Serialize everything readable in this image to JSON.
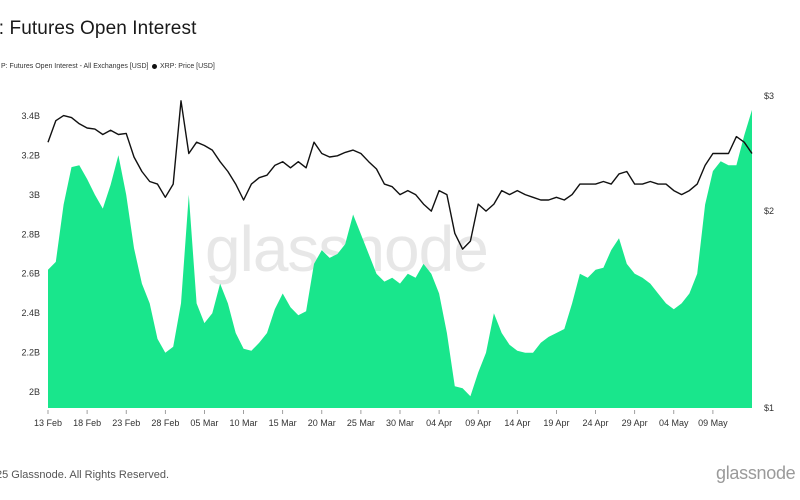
{
  "brand": "glassnode",
  "copyright": "25 Glassnode. All Rights Reserved.",
  "colors": {
    "open_interest": "#19e68c",
    "price": "#111111",
    "grid": "#eeeeee"
  },
  "chart_data": {
    "type": "area",
    "title": "P: Futures Open Interest",
    "legend": {
      "placement": "top-left",
      "entries": [
        "P: Futures Open Interest - All Exchanges [USD]",
        "XRP: Price [USD]"
      ]
    },
    "x_ticks": [
      "13 Feb",
      "18 Feb",
      "23 Feb",
      "28 Feb",
      "05 Mar",
      "10 Mar",
      "15 Mar",
      "20 Mar",
      "25 Mar",
      "30 Mar",
      "04 Apr",
      "09 Apr",
      "14 Apr",
      "19 Apr",
      "24 Apr",
      "29 Apr",
      "04 May",
      "09 May"
    ],
    "x_start": "2025-02-13",
    "x_end": "2025-05-14",
    "left_axis": {
      "ticks": [
        "3.4B",
        "3.2B",
        "3B",
        "2.8B",
        "2.6B",
        "2.4B",
        "2.2B",
        "2B"
      ],
      "ylim": [
        1.92,
        3.48
      ],
      "unit": "B USD"
    },
    "right_axis": {
      "ticks": [
        "$3",
        "$2",
        "$1"
      ],
      "scale": "log"
    },
    "grid": false,
    "series": [
      {
        "name": "P: Futures Open Interest - All Exchanges [USD]",
        "axis": "left",
        "color": "#19e68c",
        "points": [
          [
            "2025-02-13",
            2.62
          ],
          [
            "2025-02-14",
            2.66
          ],
          [
            "2025-02-15",
            2.95
          ],
          [
            "2025-02-16",
            3.14
          ],
          [
            "2025-02-17",
            3.15
          ],
          [
            "2025-02-18",
            3.08
          ],
          [
            "2025-02-19",
            3.0
          ],
          [
            "2025-02-20",
            2.93
          ],
          [
            "2025-02-21",
            3.05
          ],
          [
            "2025-02-22",
            3.2
          ],
          [
            "2025-02-23",
            3.0
          ],
          [
            "2025-02-24",
            2.73
          ],
          [
            "2025-02-25",
            2.55
          ],
          [
            "2025-02-26",
            2.45
          ],
          [
            "2025-02-27",
            2.27
          ],
          [
            "2025-02-28",
            2.2
          ],
          [
            "2025-03-01",
            2.23
          ],
          [
            "2025-03-02",
            2.45
          ],
          [
            "2025-03-03",
            3.0
          ],
          [
            "2025-03-04",
            2.45
          ],
          [
            "2025-03-05",
            2.35
          ],
          [
            "2025-03-06",
            2.4
          ],
          [
            "2025-03-07",
            2.55
          ],
          [
            "2025-03-08",
            2.45
          ],
          [
            "2025-03-09",
            2.3
          ],
          [
            "2025-03-10",
            2.22
          ],
          [
            "2025-03-11",
            2.21
          ],
          [
            "2025-03-12",
            2.25
          ],
          [
            "2025-03-13",
            2.3
          ],
          [
            "2025-03-14",
            2.42
          ],
          [
            "2025-03-15",
            2.5
          ],
          [
            "2025-03-16",
            2.43
          ],
          [
            "2025-03-17",
            2.39
          ],
          [
            "2025-03-18",
            2.41
          ],
          [
            "2025-03-19",
            2.65
          ],
          [
            "2025-03-20",
            2.72
          ],
          [
            "2025-03-21",
            2.68
          ],
          [
            "2025-03-22",
            2.7
          ],
          [
            "2025-03-23",
            2.75
          ],
          [
            "2025-03-24",
            2.9
          ],
          [
            "2025-03-25",
            2.8
          ],
          [
            "2025-03-26",
            2.7
          ],
          [
            "2025-03-27",
            2.6
          ],
          [
            "2025-03-28",
            2.56
          ],
          [
            "2025-03-29",
            2.58
          ],
          [
            "2025-03-30",
            2.55
          ],
          [
            "2025-03-31",
            2.6
          ],
          [
            "2025-04-01",
            2.58
          ],
          [
            "2025-04-02",
            2.65
          ],
          [
            "2025-04-03",
            2.6
          ],
          [
            "2025-04-04",
            2.5
          ],
          [
            "2025-04-05",
            2.3
          ],
          [
            "2025-04-06",
            2.03
          ],
          [
            "2025-04-07",
            2.02
          ],
          [
            "2025-04-08",
            1.98
          ],
          [
            "2025-04-09",
            2.1
          ],
          [
            "2025-04-10",
            2.2
          ],
          [
            "2025-04-11",
            2.4
          ],
          [
            "2025-04-12",
            2.3
          ],
          [
            "2025-04-13",
            2.24
          ],
          [
            "2025-04-14",
            2.21
          ],
          [
            "2025-04-15",
            2.2
          ],
          [
            "2025-04-16",
            2.2
          ],
          [
            "2025-04-17",
            2.25
          ],
          [
            "2025-04-18",
            2.28
          ],
          [
            "2025-04-19",
            2.3
          ],
          [
            "2025-04-20",
            2.32
          ],
          [
            "2025-04-21",
            2.45
          ],
          [
            "2025-04-22",
            2.6
          ],
          [
            "2025-04-23",
            2.58
          ],
          [
            "2025-04-24",
            2.62
          ],
          [
            "2025-04-25",
            2.63
          ],
          [
            "2025-04-26",
            2.72
          ],
          [
            "2025-04-27",
            2.78
          ],
          [
            "2025-04-28",
            2.65
          ],
          [
            "2025-04-29",
            2.6
          ],
          [
            "2025-04-30",
            2.58
          ],
          [
            "2025-05-01",
            2.55
          ],
          [
            "2025-05-02",
            2.5
          ],
          [
            "2025-05-03",
            2.45
          ],
          [
            "2025-05-04",
            2.42
          ],
          [
            "2025-05-05",
            2.45
          ],
          [
            "2025-05-06",
            2.5
          ],
          [
            "2025-05-07",
            2.6
          ],
          [
            "2025-05-08",
            2.95
          ],
          [
            "2025-05-09",
            3.12
          ],
          [
            "2025-05-10",
            3.17
          ],
          [
            "2025-05-11",
            3.15
          ],
          [
            "2025-05-12",
            3.15
          ],
          [
            "2025-05-13",
            3.3
          ],
          [
            "2025-05-14",
            3.43
          ]
        ]
      },
      {
        "name": "XRP: Price [USD]",
        "axis": "right",
        "color": "#111111",
        "points": [
          [
            "2025-02-13",
            2.55
          ],
          [
            "2025-02-14",
            2.75
          ],
          [
            "2025-02-15",
            2.8
          ],
          [
            "2025-02-16",
            2.78
          ],
          [
            "2025-02-17",
            2.72
          ],
          [
            "2025-02-18",
            2.68
          ],
          [
            "2025-02-19",
            2.67
          ],
          [
            "2025-02-20",
            2.62
          ],
          [
            "2025-02-21",
            2.66
          ],
          [
            "2025-02-22",
            2.62
          ],
          [
            "2025-02-23",
            2.63
          ],
          [
            "2025-02-24",
            2.42
          ],
          [
            "2025-02-25",
            2.3
          ],
          [
            "2025-02-26",
            2.22
          ],
          [
            "2025-02-27",
            2.2
          ],
          [
            "2025-02-28",
            2.1
          ],
          [
            "2025-03-01",
            2.2
          ],
          [
            "2025-03-02",
            2.95
          ],
          [
            "2025-03-03",
            2.45
          ],
          [
            "2025-03-04",
            2.55
          ],
          [
            "2025-03-05",
            2.52
          ],
          [
            "2025-03-06",
            2.48
          ],
          [
            "2025-03-07",
            2.38
          ],
          [
            "2025-03-08",
            2.3
          ],
          [
            "2025-03-09",
            2.2
          ],
          [
            "2025-03-10",
            2.08
          ],
          [
            "2025-03-11",
            2.2
          ],
          [
            "2025-03-12",
            2.25
          ],
          [
            "2025-03-13",
            2.27
          ],
          [
            "2025-03-14",
            2.35
          ],
          [
            "2025-03-15",
            2.38
          ],
          [
            "2025-03-16",
            2.33
          ],
          [
            "2025-03-17",
            2.38
          ],
          [
            "2025-03-18",
            2.33
          ],
          [
            "2025-03-19",
            2.55
          ],
          [
            "2025-03-20",
            2.45
          ],
          [
            "2025-03-21",
            2.42
          ],
          [
            "2025-03-22",
            2.43
          ],
          [
            "2025-03-23",
            2.46
          ],
          [
            "2025-03-24",
            2.48
          ],
          [
            "2025-03-25",
            2.45
          ],
          [
            "2025-03-26",
            2.38
          ],
          [
            "2025-03-27",
            2.32
          ],
          [
            "2025-03-28",
            2.2
          ],
          [
            "2025-03-29",
            2.18
          ],
          [
            "2025-03-30",
            2.12
          ],
          [
            "2025-03-31",
            2.15
          ],
          [
            "2025-04-01",
            2.12
          ],
          [
            "2025-04-02",
            2.05
          ],
          [
            "2025-04-03",
            2.0
          ],
          [
            "2025-04-04",
            2.15
          ],
          [
            "2025-04-05",
            2.12
          ],
          [
            "2025-04-06",
            1.85
          ],
          [
            "2025-04-07",
            1.75
          ],
          [
            "2025-04-08",
            1.8
          ],
          [
            "2025-04-09",
            2.05
          ],
          [
            "2025-04-10",
            2.0
          ],
          [
            "2025-04-11",
            2.05
          ],
          [
            "2025-04-12",
            2.15
          ],
          [
            "2025-04-13",
            2.12
          ],
          [
            "2025-04-14",
            2.15
          ],
          [
            "2025-04-15",
            2.12
          ],
          [
            "2025-04-16",
            2.1
          ],
          [
            "2025-04-17",
            2.08
          ],
          [
            "2025-04-18",
            2.08
          ],
          [
            "2025-04-19",
            2.1
          ],
          [
            "2025-04-20",
            2.08
          ],
          [
            "2025-04-21",
            2.12
          ],
          [
            "2025-04-22",
            2.2
          ],
          [
            "2025-04-23",
            2.2
          ],
          [
            "2025-04-24",
            2.2
          ],
          [
            "2025-04-25",
            2.22
          ],
          [
            "2025-04-26",
            2.2
          ],
          [
            "2025-04-27",
            2.28
          ],
          [
            "2025-04-28",
            2.3
          ],
          [
            "2025-04-29",
            2.2
          ],
          [
            "2025-04-30",
            2.2
          ],
          [
            "2025-05-01",
            2.22
          ],
          [
            "2025-05-02",
            2.2
          ],
          [
            "2025-05-03",
            2.2
          ],
          [
            "2025-05-04",
            2.15
          ],
          [
            "2025-05-05",
            2.12
          ],
          [
            "2025-05-06",
            2.15
          ],
          [
            "2025-05-07",
            2.2
          ],
          [
            "2025-05-08",
            2.35
          ],
          [
            "2025-05-09",
            2.45
          ],
          [
            "2025-05-10",
            2.45
          ],
          [
            "2025-05-11",
            2.45
          ],
          [
            "2025-05-12",
            2.6
          ],
          [
            "2025-05-13",
            2.55
          ],
          [
            "2025-05-14",
            2.45
          ]
        ]
      }
    ]
  }
}
